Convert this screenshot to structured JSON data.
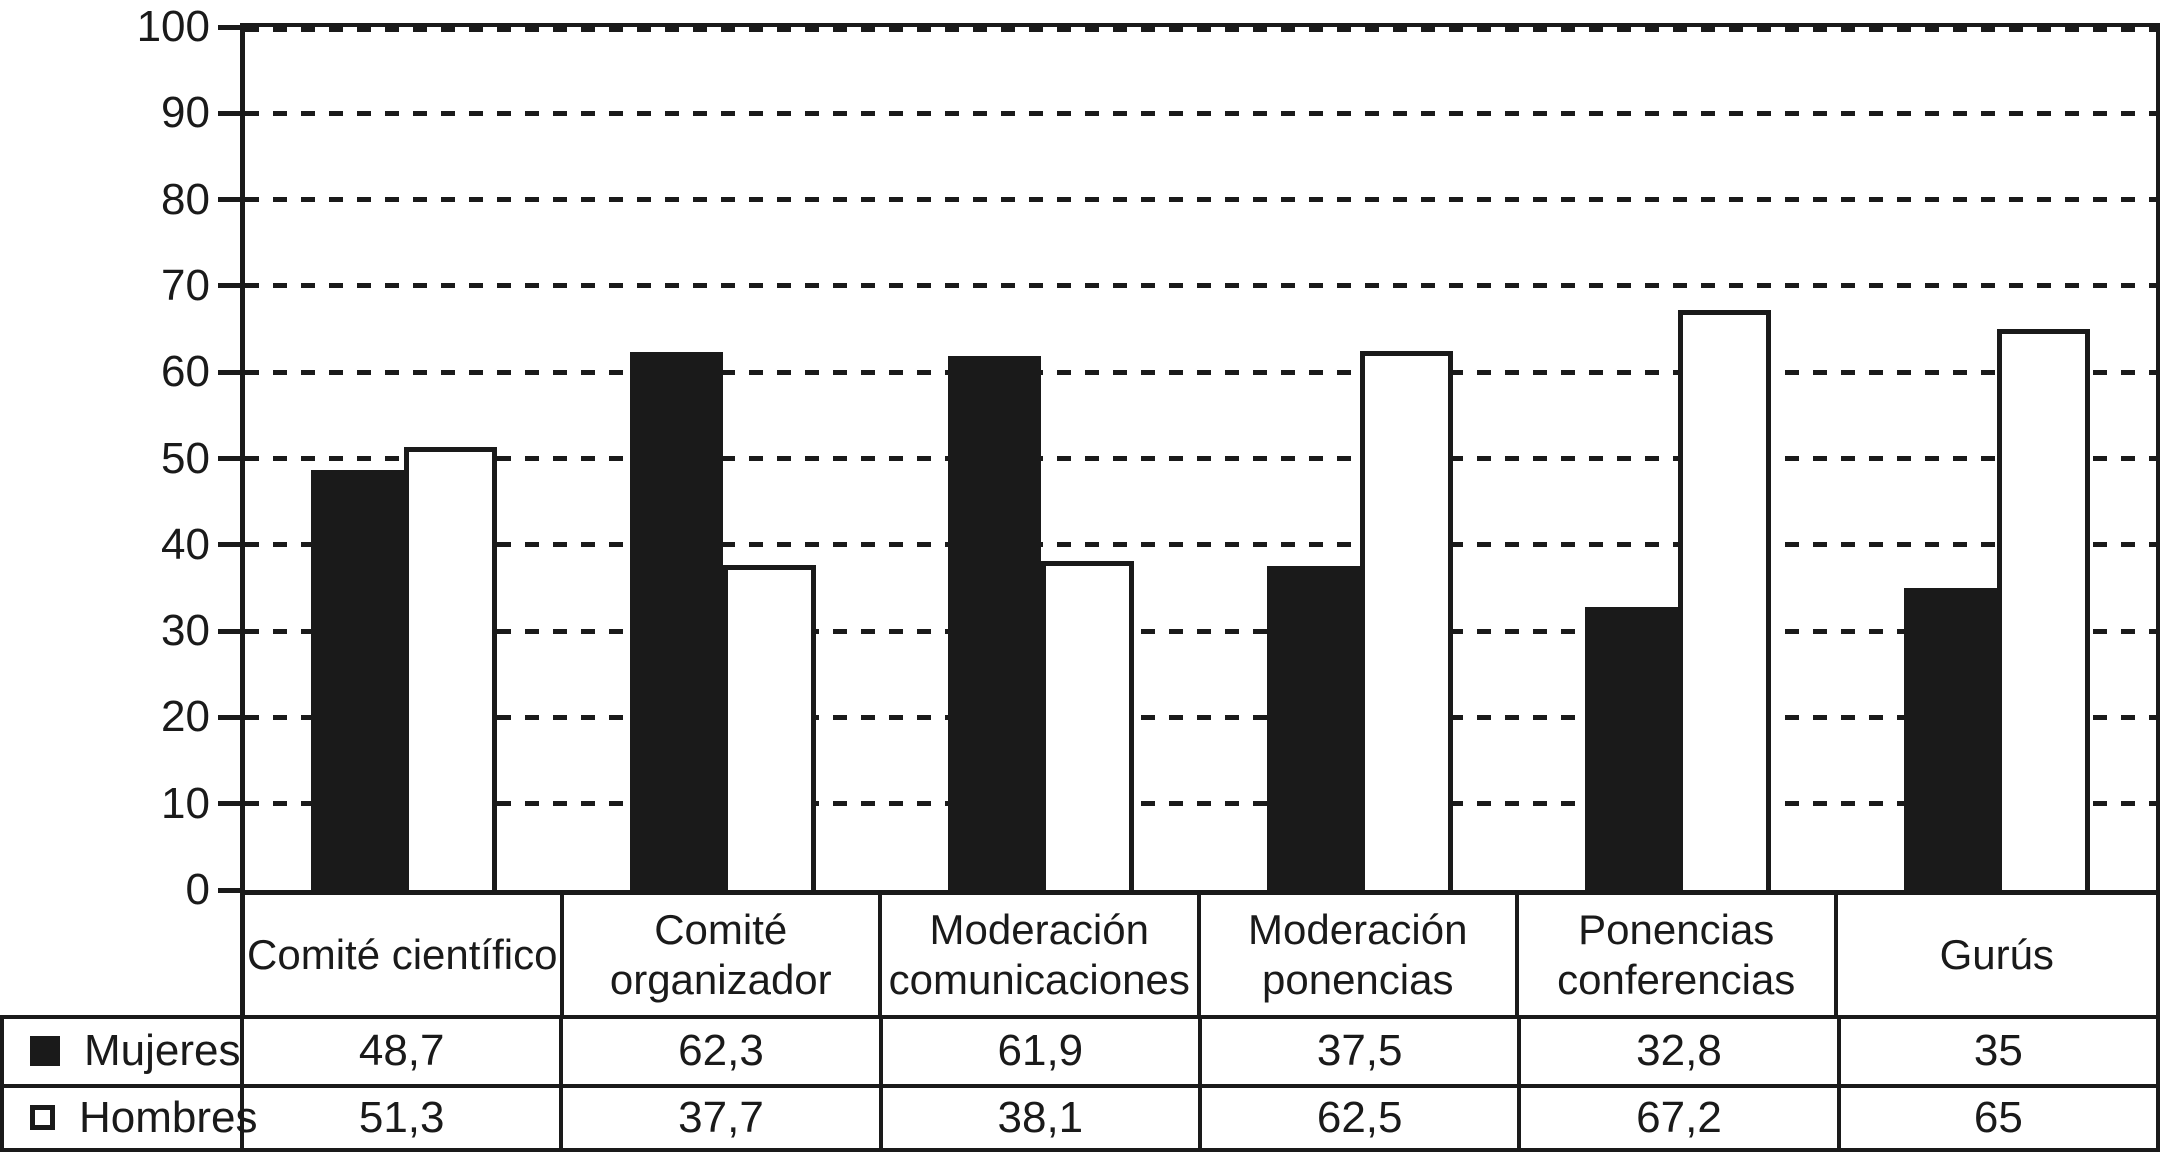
{
  "figure": {
    "background": "#ffffff",
    "ink_color": "#1a1a1a"
  },
  "chart_data": {
    "type": "bar",
    "title": "",
    "xlabel": "",
    "ylabel": "",
    "categories": [
      "Comité científico",
      "Comité organizador",
      "Moderación comunicaciones",
      "Moderación ponencias",
      "Ponencias conferencias",
      "Gurús"
    ],
    "category_label_lines": [
      [
        "Comité científico"
      ],
      [
        "Comité",
        "organizador"
      ],
      [
        "Moderación",
        "comunicaciones"
      ],
      [
        "Moderación",
        "ponencias"
      ],
      [
        "Ponencias",
        "conferencias"
      ],
      [
        "Gurús"
      ]
    ],
    "series": [
      {
        "name": "Mujeres",
        "marker": "filled-black-square",
        "bar_fill": "#1a1a1a",
        "values": [
          48.7,
          62.3,
          61.9,
          37.5,
          32.8,
          35
        ],
        "value_labels": [
          "48,7",
          "62,3",
          "61,9",
          "37,5",
          "32,8",
          "35"
        ]
      },
      {
        "name": "Hombres",
        "marker": "outlined-white-square",
        "bar_fill": "#ffffff",
        "values": [
          51.3,
          37.7,
          38.1,
          62.5,
          67.2,
          65
        ],
        "value_labels": [
          "51,3",
          "37,7",
          "38,1",
          "62,5",
          "67,2",
          "65"
        ]
      }
    ],
    "ylim": [
      0,
      100
    ],
    "yticks": [
      0,
      10,
      20,
      30,
      40,
      50,
      60,
      70,
      80,
      90,
      100
    ],
    "ytick_labels": [
      "0",
      "10",
      "20",
      "30",
      "40",
      "50",
      "60",
      "70",
      "80",
      "90",
      "100"
    ],
    "grid": "horizontal-dashed",
    "legend_position": "bottom-left-table-rows"
  }
}
